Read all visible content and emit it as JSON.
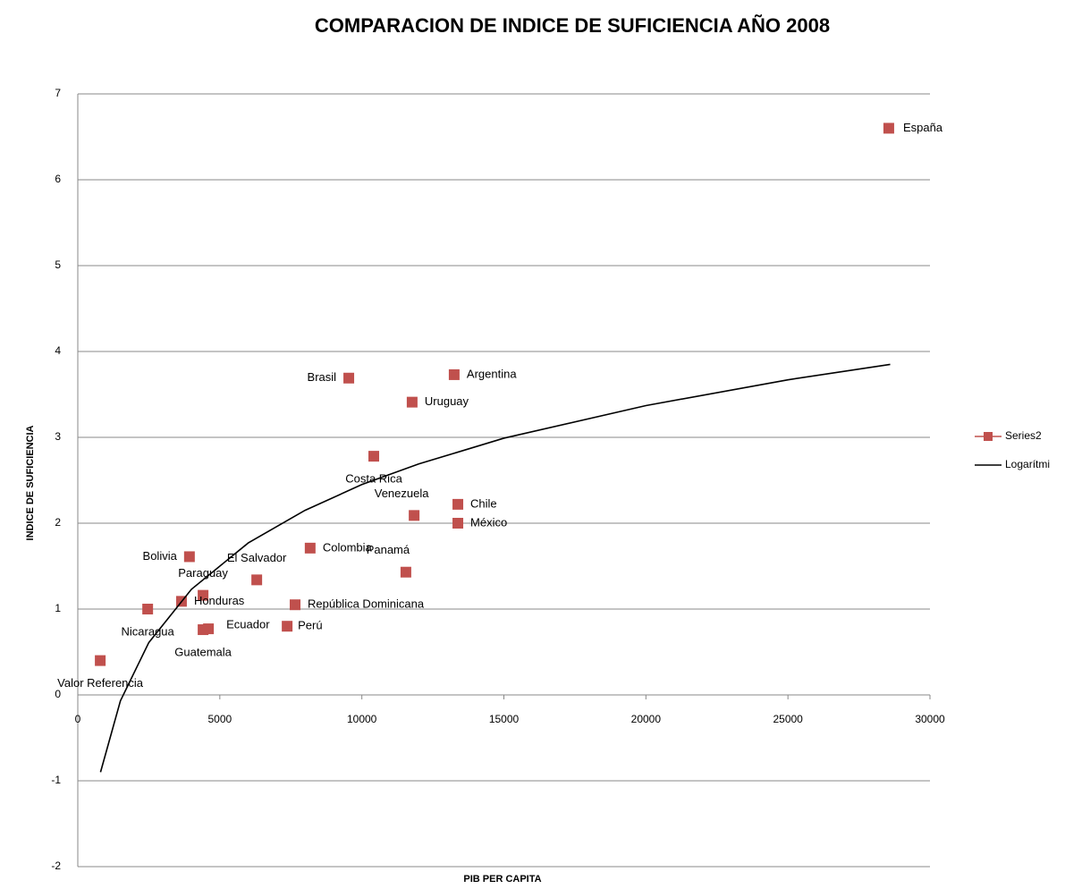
{
  "chart_data": {
    "type": "scatter",
    "title": "COMPARACION DE INDICE DE SUFICIENCIA AÑO 2008",
    "x_label": "PIB PER CAPITA",
    "y_label": "INDICE DE SUFICIENCIA",
    "point_labels": [
      "España",
      "Argentina",
      "Brasil",
      "Uruguay",
      "Costa Rica",
      "Chile",
      "Venezuela",
      "México",
      "Colombia",
      "Bolivia",
      "Panamá",
      "El Salvador",
      "Paraguay",
      "Honduras",
      "Nicaragua",
      "República Dominicana",
      "Ecuador",
      "Perú",
      "Guatemala",
      "Valor Referencia"
    ],
    "series": [
      {
        "name": "Series2",
        "color": "#c0504d",
        "marker": "square",
        "x": [
          28550,
          13250,
          9540,
          11770,
          10420,
          13380,
          11840,
          13380,
          8180,
          3930,
          11550,
          6300,
          4410,
          3650,
          2460,
          7650,
          4600,
          7370,
          4410,
          790
        ],
        "values": [
          6.6,
          3.73,
          3.69,
          3.41,
          2.78,
          2.22,
          2.09,
          2.0,
          1.71,
          1.61,
          1.43,
          1.34,
          1.16,
          1.09,
          1.0,
          1.05,
          0.77,
          0.8,
          0.76,
          0.4
        ]
      },
      {
        "name": "Logarítmi",
        "color": "#000000",
        "marker": "line",
        "x": [
          800,
          1500,
          2500,
          4000,
          6000,
          8000,
          10000,
          12000,
          15000,
          20000,
          25000,
          28600
        ],
        "values": [
          -0.9,
          -0.069,
          0.61,
          1.23,
          1.77,
          2.15,
          2.45,
          2.69,
          2.99,
          3.37,
          3.67,
          3.85
        ]
      }
    ],
    "xlim": [
      0,
      30000
    ],
    "xticks": [
      0,
      5000,
      10000,
      15000,
      20000,
      25000,
      30000
    ],
    "ylim": [
      -2,
      7
    ],
    "yticks": [
      -2,
      -1,
      0,
      1,
      2,
      3,
      4,
      5,
      6,
      7
    ],
    "grid": true,
    "legend": "right"
  }
}
